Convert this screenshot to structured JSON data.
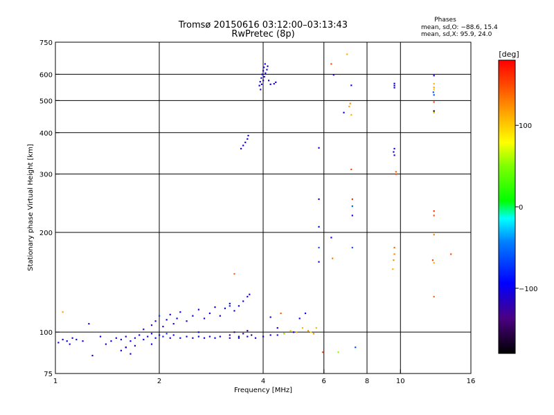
{
  "header": {
    "title_line1": "Tromsø 20150616 03:12:00–03:13:43",
    "title_line2": "RwPretec (8p)",
    "stats_heading": "Phases",
    "stats_o": "mean, sd,O: −88.6, 15.4",
    "stats_x": "mean, sd,X:  95.9, 24.0"
  },
  "colorbar": {
    "label": "[deg]",
    "range": [
      -180,
      180
    ],
    "ticks": [
      {
        "value": 100,
        "label": "100"
      },
      {
        "value": 0,
        "label": "0"
      },
      {
        "value": -100,
        "label": "−100"
      }
    ]
  },
  "chart_data": {
    "type": "scatter",
    "xlabel": "Frequency [MHz]",
    "ylabel": "Stationary phase Virtual Height [km]",
    "xscale": "log",
    "yscale": "log",
    "xlim": [
      1,
      16
    ],
    "ylim": [
      75,
      750
    ],
    "grid": true,
    "x_ticks": [
      {
        "value": 1,
        "label": "1",
        "grid": false
      },
      {
        "value": 2,
        "label": "2",
        "grid": true
      },
      {
        "value": 4,
        "label": "4",
        "grid": true
      },
      {
        "value": 6,
        "label": "6",
        "grid": true
      },
      {
        "value": 8,
        "label": "8",
        "grid": true
      },
      {
        "value": 10,
        "label": "10",
        "grid": true
      },
      {
        "value": 16,
        "label": "16",
        "grid": false
      }
    ],
    "y_ticks": [
      {
        "value": 75,
        "label": "75",
        "grid": false
      },
      {
        "value": 100,
        "label": "100",
        "grid": true
      },
      {
        "value": 200,
        "label": "200",
        "grid": true
      },
      {
        "value": 300,
        "label": "300",
        "grid": true
      },
      {
        "value": 400,
        "label": "400",
        "grid": true
      },
      {
        "value": 500,
        "label": "500",
        "grid": true
      },
      {
        "value": 600,
        "label": "600",
        "grid": true
      },
      {
        "value": 750,
        "label": "750",
        "grid": false
      }
    ],
    "points": [
      [
        1.02,
        93,
        -105
      ],
      [
        1.05,
        95,
        -110
      ],
      [
        1.08,
        94,
        -100
      ],
      [
        1.1,
        92,
        -105
      ],
      [
        1.12,
        96,
        -110
      ],
      [
        1.15,
        95,
        -100
      ],
      [
        1.2,
        94,
        -105
      ],
      [
        1.25,
        106,
        -110
      ],
      [
        1.28,
        85,
        -110
      ],
      [
        1.35,
        97,
        -100
      ],
      [
        1.4,
        92,
        -110
      ],
      [
        1.45,
        94,
        -105
      ],
      [
        1.5,
        96,
        -100
      ],
      [
        1.55,
        95,
        -110
      ],
      [
        1.6,
        97,
        -105
      ],
      [
        1.65,
        94,
        -100
      ],
      [
        1.7,
        96,
        -110
      ],
      [
        1.75,
        98,
        -105
      ],
      [
        1.8,
        95,
        -100
      ],
      [
        1.85,
        97,
        -110
      ],
      [
        1.9,
        99,
        -105
      ],
      [
        1.95,
        96,
        -100
      ],
      [
        2.0,
        98,
        -90
      ],
      [
        2.05,
        97,
        -80
      ],
      [
        2.1,
        99,
        -70
      ],
      [
        2.15,
        96,
        -105
      ],
      [
        2.2,
        98,
        -110
      ],
      [
        2.3,
        96,
        -100
      ],
      [
        2.4,
        97,
        -105
      ],
      [
        2.5,
        96,
        -110
      ],
      [
        2.6,
        97,
        -100
      ],
      [
        2.7,
        96,
        -105
      ],
      [
        2.8,
        97,
        -110
      ],
      [
        2.9,
        96,
        -100
      ],
      [
        3.0,
        97,
        -105
      ],
      [
        3.2,
        96,
        -110
      ],
      [
        3.4,
        96,
        -100
      ],
      [
        3.6,
        97,
        -105
      ],
      [
        3.8,
        96,
        -110
      ],
      [
        4.0,
        97,
        -100
      ],
      [
        4.2,
        98,
        -105
      ],
      [
        4.4,
        98,
        -110
      ],
      [
        4.6,
        99,
        -100
      ],
      [
        1.55,
        88,
        -110
      ],
      [
        1.6,
        90,
        -105
      ],
      [
        1.65,
        86,
        -100
      ],
      [
        1.7,
        91,
        -110
      ],
      [
        1.8,
        102,
        -105
      ],
      [
        1.9,
        92,
        -100
      ],
      [
        1.9,
        105,
        -110
      ],
      [
        1.95,
        108,
        -105
      ],
      [
        2.0,
        112,
        -70
      ],
      [
        2.05,
        104,
        -110
      ],
      [
        2.1,
        109,
        -100
      ],
      [
        2.15,
        113,
        -105
      ],
      [
        2.2,
        106,
        -110
      ],
      [
        2.25,
        110,
        -100
      ],
      [
        2.3,
        115,
        -105
      ],
      [
        2.4,
        108,
        -110
      ],
      [
        2.5,
        112,
        -100
      ],
      [
        2.6,
        117,
        -105
      ],
      [
        2.7,
        110,
        -110
      ],
      [
        2.8,
        114,
        -100
      ],
      [
        2.9,
        119,
        -105
      ],
      [
        3.0,
        112,
        -110
      ],
      [
        3.1,
        118,
        -100
      ],
      [
        3.2,
        122,
        -105
      ],
      [
        3.3,
        116,
        -110
      ],
      [
        3.4,
        120,
        -100
      ],
      [
        3.5,
        124,
        -105
      ],
      [
        3.6,
        128,
        -110
      ],
      [
        3.65,
        130,
        -105
      ],
      [
        3.2,
        98,
        -140
      ],
      [
        3.3,
        100,
        -145
      ],
      [
        3.4,
        97,
        -150
      ],
      [
        3.5,
        99,
        -140
      ],
      [
        3.6,
        101,
        -145
      ],
      [
        3.7,
        98,
        -150
      ],
      [
        4.2,
        111,
        -110
      ],
      [
        4.4,
        103,
        -100
      ],
      [
        4.6,
        99,
        60
      ],
      [
        4.8,
        101,
        100
      ],
      [
        5.0,
        100,
        115
      ],
      [
        5.2,
        103,
        110
      ],
      [
        5.4,
        101,
        120
      ],
      [
        5.5,
        100,
        90
      ],
      [
        5.6,
        99,
        125
      ],
      [
        5.7,
        103,
        110
      ],
      [
        4.5,
        114,
        140
      ],
      [
        4.9,
        100,
        -100
      ],
      [
        5.1,
        110,
        -100
      ],
      [
        5.3,
        114,
        -100
      ],
      [
        1.05,
        115,
        115
      ],
      [
        1.6,
        90,
        -105
      ],
      [
        2.6,
        100,
        -100
      ],
      [
        3.2,
        120,
        -80
      ],
      [
        3.3,
        150,
        140
      ],
      [
        3.45,
        358,
        -110
      ],
      [
        3.5,
        366,
        -100
      ],
      [
        3.55,
        374,
        -105
      ],
      [
        3.6,
        383,
        -110
      ],
      [
        3.62,
        392,
        -100
      ],
      [
        3.9,
        555,
        -100
      ],
      [
        3.92,
        570,
        -105
      ],
      [
        3.95,
        585,
        -110
      ],
      [
        3.97,
        600,
        -100
      ],
      [
        4.0,
        615,
        -105
      ],
      [
        4.02,
        630,
        -110
      ],
      [
        4.05,
        645,
        -100
      ],
      [
        3.93,
        540,
        -105
      ],
      [
        3.96,
        560,
        -110
      ],
      [
        4.0,
        575,
        -100
      ],
      [
        4.03,
        590,
        -105
      ],
      [
        4.06,
        605,
        -110
      ],
      [
        4.1,
        620,
        -100
      ],
      [
        4.12,
        635,
        -105
      ],
      [
        4.15,
        575,
        -110
      ],
      [
        4.2,
        560,
        -100
      ],
      [
        4.3,
        562,
        -105
      ],
      [
        4.35,
        568,
        -110
      ],
      [
        5.8,
        360,
        -100
      ],
      [
        5.8,
        252,
        -100
      ],
      [
        5.8,
        208,
        -90
      ],
      [
        5.8,
        180,
        -60
      ],
      [
        5.8,
        163,
        -100
      ],
      [
        5.95,
        87,
        150
      ],
      [
        6.3,
        645,
        150
      ],
      [
        6.4,
        598,
        -100
      ],
      [
        6.35,
        167,
        130
      ],
      [
        6.3,
        193,
        -105
      ],
      [
        6.6,
        87,
        50
      ],
      [
        6.85,
        460,
        -105
      ],
      [
        7.0,
        690,
        110
      ],
      [
        7.15,
        490,
        125
      ],
      [
        7.1,
        480,
        115
      ],
      [
        7.2,
        453,
        110
      ],
      [
        7.2,
        556,
        -100
      ],
      [
        7.2,
        310,
        150
      ],
      [
        7.25,
        252,
        160
      ],
      [
        7.25,
        240,
        -60
      ],
      [
        7.25,
        225,
        -100
      ],
      [
        7.25,
        180,
        -60
      ],
      [
        7.4,
        90,
        -60
      ],
      [
        9.6,
        563,
        -100
      ],
      [
        9.6,
        555,
        -105
      ],
      [
        9.6,
        547,
        -105
      ],
      [
        9.6,
        358,
        -100
      ],
      [
        9.55,
        350,
        -105
      ],
      [
        9.6,
        342,
        -105
      ],
      [
        9.7,
        305,
        140
      ],
      [
        9.7,
        300,
        150
      ],
      [
        9.6,
        180,
        140
      ],
      [
        9.6,
        172,
        130
      ],
      [
        9.55,
        165,
        125
      ],
      [
        9.5,
        155,
        110
      ],
      [
        12.5,
        595,
        -100
      ],
      [
        12.5,
        562,
        110
      ],
      [
        12.5,
        548,
        120
      ],
      [
        12.5,
        540,
        105
      ],
      [
        12.45,
        530,
        -60
      ],
      [
        12.5,
        520,
        -60
      ],
      [
        12.5,
        495,
        150
      ],
      [
        12.5,
        465,
        -180
      ],
      [
        12.5,
        460,
        110
      ],
      [
        12.5,
        232,
        160
      ],
      [
        12.5,
        225,
        150
      ],
      [
        12.5,
        197,
        130
      ],
      [
        12.4,
        165,
        150
      ],
      [
        12.5,
        162,
        110
      ],
      [
        12.5,
        128,
        140
      ],
      [
        14.0,
        172,
        150
      ]
    ]
  }
}
